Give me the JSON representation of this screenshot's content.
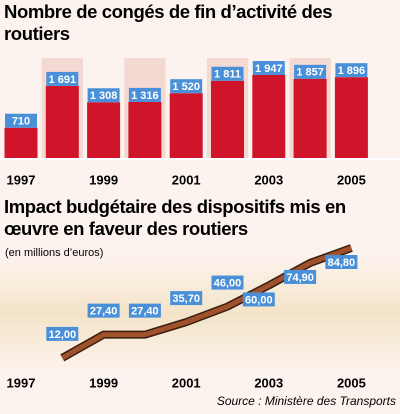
{
  "chart_data": [
    {
      "type": "bar",
      "title": "Nombre de congés de fin d’activité des routiers",
      "categories": [
        "1997",
        null,
        "1999",
        null,
        "2001",
        null,
        "2003",
        null,
        "2005"
      ],
      "values": [
        710,
        1691,
        1308,
        1316,
        1520,
        1811,
        1947,
        1857,
        1896
      ],
      "value_labels": [
        "710",
        "1 691",
        "1 308",
        "1 316",
        "1 520",
        "1 811",
        "1 947",
        "1 857",
        "1 896"
      ],
      "color": "#d0152b"
    },
    {
      "type": "line",
      "title": "Impact budgétaire des dispositifs mis en œuvre en faveur des routiers",
      "subtitle": "(en millions d’euros)",
      "categories": [
        "1997",
        null,
        "1999",
        null,
        "2001",
        null,
        "2003",
        null,
        "2005"
      ],
      "values": [
        null,
        12.0,
        27.4,
        27.4,
        35.7,
        46.0,
        60.0,
        74.9,
        84.8
      ],
      "value_labels": [
        null,
        "12,00",
        "27,40",
        "27,40",
        "35,70",
        "46,00",
        "60,00",
        "74,90",
        "84,80"
      ],
      "color": "#a0522d",
      "source": "Source : Ministère des Transports"
    }
  ]
}
